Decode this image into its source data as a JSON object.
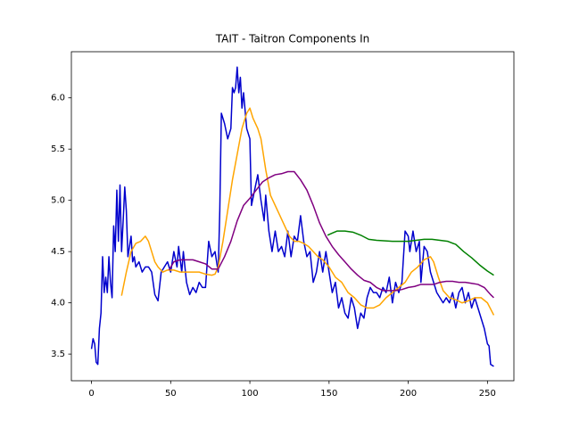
{
  "chart_data": {
    "type": "line",
    "title": "TAIT - Taitron Components In",
    "xlim": [
      -12.7,
      266.7
    ],
    "xticks": [
      0,
      50,
      100,
      150,
      200,
      250
    ],
    "ylim": [
      3.24,
      6.45
    ],
    "yticks": [
      3.5,
      {
        "value": 4,
        "label": "4.0"
      },
      4.5,
      {
        "value": 5,
        "label": "5.0"
      },
      5.5,
      {
        "value": 6,
        "label": "6.0"
      }
    ],
    "grid": false,
    "series": [
      {
        "color": "#0000cd",
        "x": [
          0,
          1,
          2,
          3,
          4,
          5,
          6,
          7,
          8,
          9,
          10,
          11,
          12,
          13,
          14,
          15,
          16,
          17,
          18,
          19,
          20,
          21,
          22,
          23,
          24,
          25,
          26,
          27,
          28,
          30,
          32,
          34,
          36,
          38,
          40,
          42,
          44,
          46,
          48,
          50,
          52,
          54,
          55,
          57,
          58,
          60,
          62,
          64,
          66,
          68,
          70,
          72,
          74,
          76,
          78,
          80,
          81,
          82,
          84,
          86,
          88,
          89,
          90,
          91,
          92,
          93,
          94,
          95,
          96,
          98,
          100,
          101,
          103,
          105,
          107,
          109,
          110,
          112,
          114,
          116,
          118,
          120,
          122,
          124,
          126,
          128,
          130,
          132,
          134,
          136,
          138,
          140,
          142,
          144,
          146,
          148,
          150,
          152,
          154,
          156,
          158,
          160,
          162,
          164,
          166,
          168,
          170,
          172,
          174,
          176,
          178,
          180,
          182,
          184,
          186,
          188,
          190,
          192,
          194,
          196,
          198,
          200,
          201,
          203,
          205,
          207,
          208,
          210,
          212,
          214,
          216,
          218,
          220,
          222,
          224,
          226,
          228,
          230,
          232,
          234,
          236,
          238,
          240,
          242,
          244,
          246,
          248,
          250,
          251,
          252,
          254
        ],
        "values": [
          3.55,
          3.65,
          3.6,
          3.42,
          3.4,
          3.75,
          3.9,
          4.45,
          4.1,
          4.25,
          4.1,
          4.45,
          4.2,
          4.05,
          4.75,
          4.5,
          5.1,
          4.6,
          5.15,
          4.5,
          4.8,
          5.13,
          4.9,
          4.45,
          4.55,
          4.65,
          4.4,
          4.45,
          4.35,
          4.4,
          4.3,
          4.35,
          4.35,
          4.3,
          4.08,
          4.02,
          4.3,
          4.35,
          4.4,
          4.3,
          4.5,
          4.35,
          4.55,
          4.3,
          4.5,
          4.2,
          4.08,
          4.15,
          4.1,
          4.2,
          4.15,
          4.15,
          4.6,
          4.45,
          4.5,
          4.3,
          4.9,
          5.85,
          5.75,
          5.6,
          5.7,
          6.1,
          6.05,
          6.1,
          6.3,
          6.05,
          6.2,
          5.9,
          6.05,
          5.7,
          5.6,
          4.95,
          5.1,
          5.25,
          5.0,
          4.8,
          5.05,
          4.7,
          4.5,
          4.7,
          4.5,
          4.55,
          4.45,
          4.7,
          4.45,
          4.65,
          4.6,
          4.85,
          4.6,
          4.45,
          4.5,
          4.2,
          4.3,
          4.5,
          4.3,
          4.5,
          4.3,
          4.1,
          4.2,
          3.95,
          4.05,
          3.9,
          3.85,
          4.05,
          3.95,
          3.75,
          3.9,
          3.85,
          4.05,
          4.15,
          4.1,
          4.1,
          4.05,
          4.15,
          4.1,
          4.25,
          4.0,
          4.2,
          4.1,
          4.2,
          4.7,
          4.65,
          4.5,
          4.7,
          4.5,
          4.6,
          4.2,
          4.55,
          4.5,
          4.3,
          4.2,
          4.1,
          4.05,
          4.0,
          4.05,
          4.0,
          4.1,
          3.95,
          4.1,
          4.15,
          4.0,
          4.1,
          3.95,
          4.05,
          3.95,
          3.85,
          3.75,
          3.6,
          3.58,
          3.4,
          3.38
        ]
      },
      {
        "color": "#ffa500",
        "x": [
          19,
          22,
          25,
          28,
          31,
          34,
          36,
          38,
          40,
          42,
          45,
          48,
          52,
          56,
          60,
          64,
          68,
          72,
          76,
          78,
          80,
          83,
          86,
          89,
          92,
          95,
          98,
          100,
          102,
          105,
          107,
          110,
          113,
          116,
          119,
          122,
          125,
          128,
          131,
          134,
          137,
          140,
          143,
          146,
          150,
          154,
          158,
          162,
          166,
          170,
          174,
          178,
          182,
          186,
          190,
          194,
          198,
          202,
          206,
          210,
          214,
          216,
          219,
          222,
          226,
          230,
          234,
          238,
          242,
          246,
          250,
          254
        ],
        "values": [
          4.07,
          4.3,
          4.5,
          4.58,
          4.6,
          4.65,
          4.6,
          4.5,
          4.4,
          4.35,
          4.3,
          4.32,
          4.32,
          4.3,
          4.3,
          4.3,
          4.3,
          4.28,
          4.27,
          4.28,
          4.35,
          4.6,
          4.9,
          5.2,
          5.45,
          5.7,
          5.85,
          5.9,
          5.8,
          5.7,
          5.6,
          5.3,
          5.05,
          4.95,
          4.85,
          4.75,
          4.65,
          4.6,
          4.6,
          4.58,
          4.55,
          4.5,
          4.45,
          4.42,
          4.35,
          4.25,
          4.2,
          4.1,
          4.05,
          3.98,
          3.95,
          3.95,
          3.98,
          4.05,
          4.1,
          4.15,
          4.2,
          4.3,
          4.35,
          4.42,
          4.45,
          4.4,
          4.25,
          4.12,
          4.05,
          4.03,
          4.0,
          4.02,
          4.05,
          4.05,
          4.0,
          3.88
        ]
      },
      {
        "color": "#800080",
        "x": [
          49,
          52,
          56,
          60,
          64,
          68,
          72,
          76,
          80,
          84,
          88,
          92,
          96,
          100,
          104,
          108,
          112,
          116,
          120,
          124,
          128,
          132,
          136,
          140,
          144,
          148,
          152,
          156,
          160,
          164,
          168,
          172,
          176,
          180,
          184,
          188,
          192,
          196,
          200,
          204,
          208,
          212,
          216,
          220,
          224,
          228,
          232,
          236,
          240,
          244,
          248,
          252,
          254
        ],
        "values": [
          4.32,
          4.4,
          4.42,
          4.42,
          4.42,
          4.4,
          4.38,
          4.33,
          4.33,
          4.45,
          4.6,
          4.8,
          4.95,
          5.02,
          5.1,
          5.18,
          5.22,
          5.25,
          5.26,
          5.28,
          5.28,
          5.2,
          5.1,
          4.95,
          4.78,
          4.65,
          4.55,
          4.47,
          4.4,
          4.33,
          4.27,
          4.22,
          4.2,
          4.15,
          4.12,
          4.12,
          4.12,
          4.13,
          4.15,
          4.16,
          4.18,
          4.18,
          4.18,
          4.2,
          4.21,
          4.21,
          4.2,
          4.2,
          4.19,
          4.18,
          4.15,
          4.08,
          4.05
        ]
      },
      {
        "color": "#008000",
        "x": [
          149,
          152,
          155,
          160,
          165,
          170,
          175,
          180,
          190,
          200,
          210,
          215,
          220,
          225,
          230,
          235,
          240,
          245,
          250,
          254
        ],
        "values": [
          4.66,
          4.68,
          4.7,
          4.7,
          4.69,
          4.66,
          4.62,
          4.61,
          4.6,
          4.6,
          4.62,
          4.62,
          4.61,
          4.6,
          4.57,
          4.5,
          4.44,
          4.37,
          4.31,
          4.27
        ]
      }
    ]
  }
}
